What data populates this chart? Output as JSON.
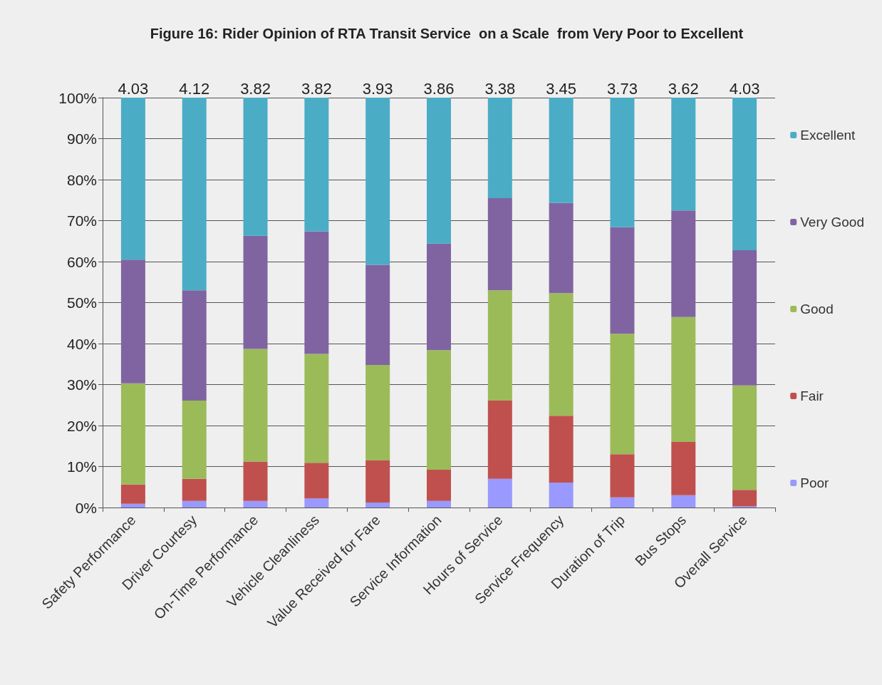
{
  "chart_data": {
    "type": "bar",
    "title": "Figure 16: Rider Opinion of RTA Transit Service  on a Scale  from Very Poor to Excellent",
    "stacked": true,
    "categories": [
      "Safety Performance",
      "Driver Courtesy",
      "On-Time Performance",
      "Vehicle Cleanliness",
      "Value Received for Fare",
      "Service Information",
      "Hours of Service",
      "Service Frequency",
      "Duration of Trip",
      "Bus Stops",
      "Overall Service"
    ],
    "series": [
      {
        "name": "Poor",
        "color": "#9999ff",
        "values": [
          0.9,
          1.6,
          1.6,
          2.2,
          1.2,
          1.6,
          7.0,
          6.1,
          2.5,
          3.0,
          0.3
        ]
      },
      {
        "name": "Fair",
        "color": "#c0504d",
        "values": [
          4.7,
          5.4,
          9.6,
          8.7,
          10.3,
          7.6,
          19.1,
          16.3,
          10.5,
          13.0,
          4.0
        ]
      },
      {
        "name": "Good",
        "color": "#9bbb59",
        "values": [
          24.7,
          19.1,
          27.5,
          26.6,
          23.3,
          29.2,
          26.9,
          29.9,
          29.4,
          30.5,
          25.5
        ]
      },
      {
        "name": "Very Good",
        "color": "#8064a2",
        "values": [
          30.2,
          26.9,
          27.6,
          29.9,
          24.4,
          26.0,
          22.5,
          22.0,
          26.0,
          26.0,
          33.0
        ]
      },
      {
        "name": "Excellent",
        "color": "#4bacc6",
        "values": [
          39.5,
          47.0,
          33.7,
          32.6,
          40.8,
          35.6,
          24.5,
          25.7,
          31.6,
          27.5,
          37.2
        ]
      }
    ],
    "annotations": [
      {
        "text": "4.03",
        "x": "Safety Performance",
        "y": 100
      },
      {
        "text": "4.12",
        "x": "Driver Courtesy",
        "y": 100
      },
      {
        "text": "3.82",
        "x": "On-Time Performance",
        "y": 100
      },
      {
        "text": "3.82",
        "x": "Vehicle Cleanliness",
        "y": 100
      },
      {
        "text": "3.93",
        "x": "Value Received for Fare",
        "y": 100
      },
      {
        "text": "3.86",
        "x": "Service Information",
        "y": 100
      },
      {
        "text": "3.38",
        "x": "Hours of Service",
        "y": 100
      },
      {
        "text": "3.45",
        "x": "Service Frequency",
        "y": 100
      },
      {
        "text": "3.73",
        "x": "Duration of Trip",
        "y": 100
      },
      {
        "text": "3.62",
        "x": "Bus Stops",
        "y": 100
      },
      {
        "text": "4.03",
        "x": "Overall Service",
        "y": 100
      }
    ],
    "ylim": [
      0,
      100
    ],
    "yticks": [
      {
        "value": 0,
        "label": "0%"
      },
      {
        "value": 10,
        "label": "10%"
      },
      {
        "value": 20,
        "label": "20%"
      },
      {
        "value": 30,
        "label": "30%"
      },
      {
        "value": 40,
        "label": "40%"
      },
      {
        "value": 50,
        "label": "50%"
      },
      {
        "value": 60,
        "label": "60%"
      },
      {
        "value": 70,
        "label": "70%"
      },
      {
        "value": 80,
        "label": "80%"
      },
      {
        "value": 90,
        "label": "90%"
      },
      {
        "value": 100,
        "label": "100%"
      }
    ],
    "grid": "y",
    "legend": "right"
  }
}
